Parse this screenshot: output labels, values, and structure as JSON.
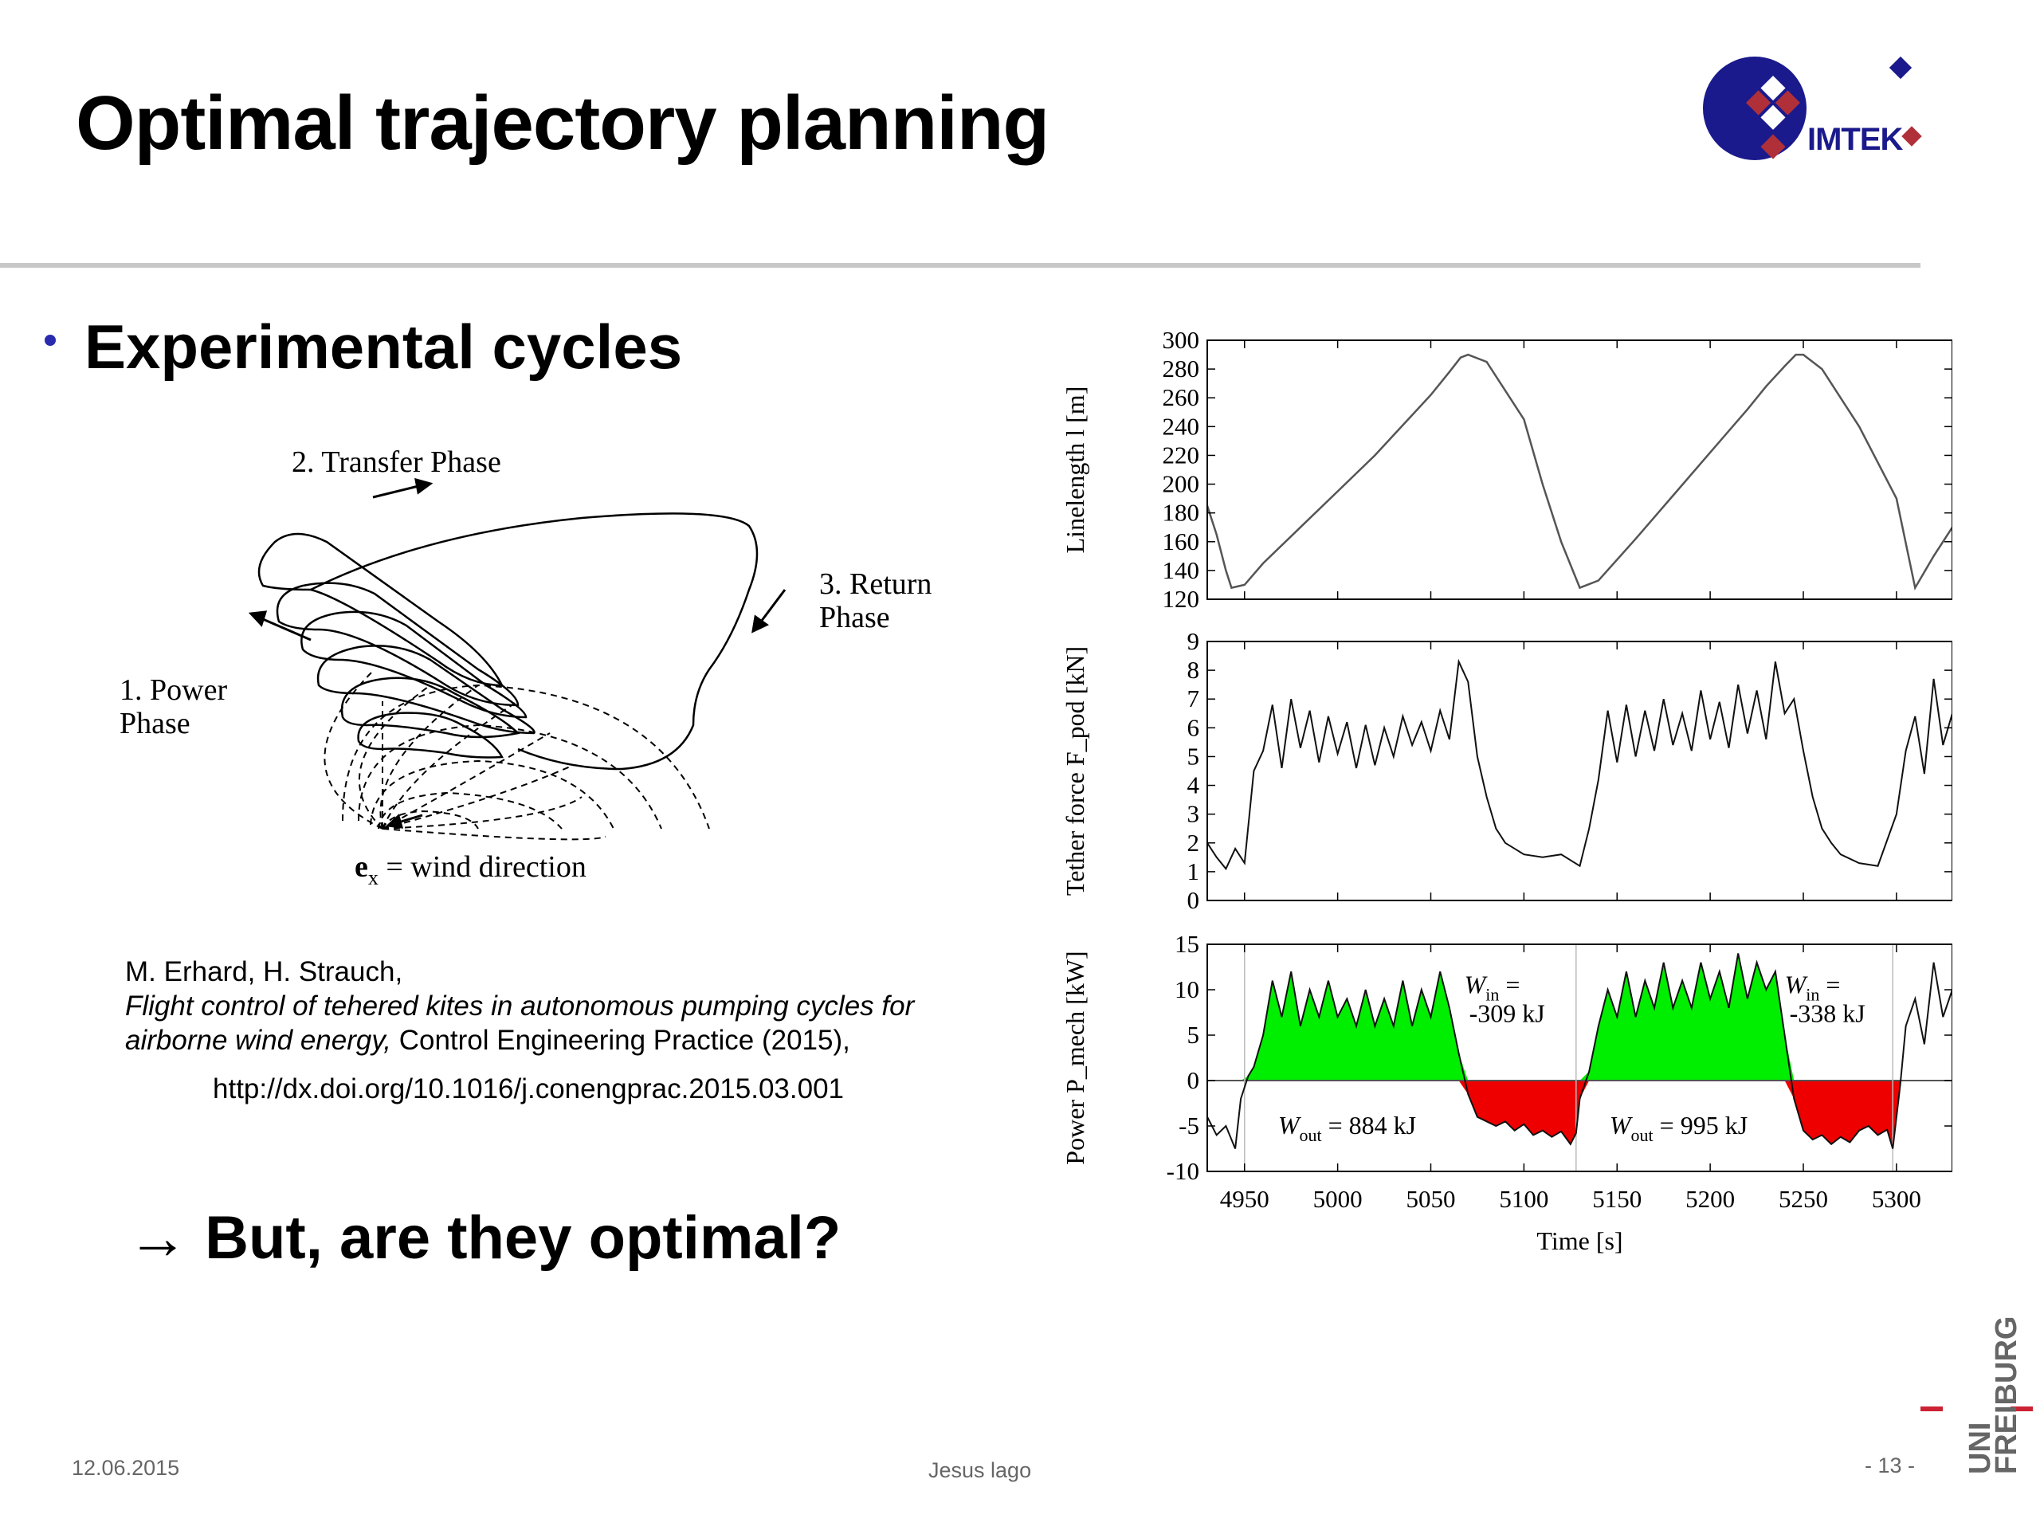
{
  "slide": {
    "title": "Optimal trajectory planning",
    "bullet": "Experimental cycles",
    "logo_text": "IMTEK",
    "question_arrow": "→",
    "question": "But, are they optimal?",
    "uni_logo_line1": "UNI",
    "uni_logo_line2": "FREIBURG"
  },
  "kite_diagram": {
    "label_transfer": "2. Transfer Phase",
    "label_return_1": "3. Return",
    "label_return_2": "Phase",
    "label_power_1": "1. Power",
    "label_power_2": "Phase",
    "label_wind_e": "e",
    "label_wind_sub": "x",
    "label_wind_rest": " = wind direction"
  },
  "citation": {
    "authors": "M. Erhard, H. Strauch,",
    "title_italic": "Flight control of tehered kites in autonomous pumping cycles for",
    "title_italic_2": "airborne wind energy,",
    "journal": " Control Engineering Practice (2015),",
    "url": "http://dx.doi.org/10.1016/j.conengprac.2015.03.001"
  },
  "footer": {
    "date": "12.06.2015",
    "author": "Jesus lago",
    "page": "- 13 -"
  },
  "chart_data": [
    {
      "type": "line",
      "ylabel": "Linelength l [m]",
      "xlim": [
        4930,
        5330
      ],
      "ylim": [
        120,
        300
      ],
      "yticks": [
        120,
        140,
        160,
        180,
        200,
        220,
        240,
        260,
        280,
        300
      ],
      "series": [
        {
          "x": [
            4930,
            4935,
            4940,
            4943,
            4950,
            4960,
            4980,
            5000,
            5020,
            5040,
            5050,
            5060,
            5066,
            5070,
            5080,
            5100,
            5110,
            5120,
            5130,
            5140,
            5160,
            5180,
            5200,
            5220,
            5230,
            5240,
            5246,
            5250,
            5260,
            5280,
            5300,
            5310,
            5320,
            5330
          ],
          "values": [
            185,
            165,
            140,
            128,
            130,
            145,
            170,
            195,
            220,
            248,
            262,
            278,
            288,
            290,
            285,
            245,
            200,
            160,
            128,
            133,
            162,
            192,
            222,
            252,
            268,
            282,
            290,
            290,
            280,
            240,
            190,
            128,
            150,
            170
          ]
        }
      ]
    },
    {
      "type": "line",
      "ylabel": "Tether force F_pod [kN]",
      "xlim": [
        4930,
        5330
      ],
      "ylim": [
        0,
        9
      ],
      "yticks": [
        0,
        1,
        2,
        3,
        4,
        5,
        6,
        7,
        8,
        9
      ],
      "series": [
        {
          "x": [
            4930,
            4935,
            4940,
            4945,
            4950,
            4955,
            4960,
            4965,
            4970,
            4975,
            4980,
            4985,
            4990,
            4995,
            5000,
            5005,
            5010,
            5015,
            5020,
            5025,
            5030,
            5035,
            5040,
            5045,
            5050,
            5055,
            5060,
            5065,
            5070,
            5075,
            5080,
            5085,
            5090,
            5100,
            5110,
            5120,
            5130,
            5135,
            5140,
            5145,
            5150,
            5155,
            5160,
            5165,
            5170,
            5175,
            5180,
            5185,
            5190,
            5195,
            5200,
            5205,
            5210,
            5215,
            5220,
            5225,
            5230,
            5235,
            5240,
            5245,
            5250,
            5255,
            5260,
            5265,
            5270,
            5280,
            5290,
            5300,
            5305,
            5310,
            5315,
            5320,
            5325,
            5330
          ],
          "values": [
            2,
            1.5,
            1.1,
            1.8,
            1.3,
            4.5,
            5.2,
            6.8,
            4.6,
            7,
            5.3,
            6.6,
            4.8,
            6.4,
            5.1,
            6.2,
            4.6,
            6.1,
            4.7,
            6.0,
            5.0,
            6.4,
            5.4,
            6.2,
            5.2,
            6.6,
            5.6,
            8.3,
            7.6,
            5.0,
            3.6,
            2.5,
            2.0,
            1.6,
            1.5,
            1.6,
            1.2,
            2.5,
            4.2,
            6.6,
            4.8,
            6.8,
            5.0,
            6.6,
            5.2,
            7.0,
            5.4,
            6.5,
            5.2,
            7.3,
            5.6,
            6.9,
            5.3,
            7.5,
            5.8,
            7.3,
            5.6,
            8.3,
            6.5,
            7.0,
            5.2,
            3.6,
            2.5,
            2.0,
            1.6,
            1.3,
            1.2,
            3.0,
            5.2,
            6.4,
            4.4,
            7.7,
            5.4,
            6.5
          ]
        }
      ]
    },
    {
      "type": "area",
      "ylabel": "Power P_mech [kW]",
      "xlabel": "Time [s]",
      "xlim": [
        4930,
        5330
      ],
      "ylim": [
        -10,
        15
      ],
      "xticks": [
        4950,
        5000,
        5050,
        5100,
        5150,
        5200,
        5250,
        5300
      ],
      "yticks": [
        -10,
        -5,
        0,
        5,
        10,
        15
      ],
      "series": [
        {
          "x": [
            4930,
            4935,
            4940,
            4945,
            4948,
            4952,
            4955,
            4960,
            4965,
            4970,
            4975,
            4980,
            4985,
            4990,
            4995,
            5000,
            5005,
            5010,
            5015,
            5020,
            5025,
            5030,
            5035,
            5040,
            5045,
            5050,
            5055,
            5060,
            5065,
            5070,
            5075,
            5080,
            5085,
            5090,
            5095,
            5100,
            5105,
            5110,
            5115,
            5120,
            5125,
            5128,
            5130,
            5135,
            5140,
            5145,
            5150,
            5155,
            5160,
            5165,
            5170,
            5175,
            5180,
            5185,
            5190,
            5195,
            5200,
            5205,
            5210,
            5215,
            5220,
            5225,
            5230,
            5235,
            5240,
            5245,
            5250,
            5255,
            5260,
            5265,
            5270,
            5275,
            5280,
            5285,
            5290,
            5295,
            5298,
            5302,
            5305,
            5310,
            5315,
            5320,
            5325,
            5330
          ],
          "values": [
            -4,
            -6,
            -5,
            -7.5,
            -2,
            0.5,
            1.5,
            5,
            11,
            7,
            12,
            6,
            10,
            7,
            11,
            7,
            9,
            6,
            10,
            6,
            9,
            6,
            11,
            6,
            10,
            7,
            12,
            8,
            3,
            -1.5,
            -4,
            -4.5,
            -5,
            -4.5,
            -5.5,
            -4.8,
            -6,
            -5.5,
            -6.2,
            -5.6,
            -7,
            -5.8,
            -2,
            1,
            6,
            10,
            7,
            12,
            7,
            11,
            8,
            13,
            8,
            11,
            8,
            13,
            9,
            12,
            8,
            14,
            9,
            13,
            10,
            12,
            5,
            -2,
            -5.5,
            -6.5,
            -6,
            -7,
            -6.2,
            -6.8,
            -5.5,
            -5,
            -6,
            -5.4,
            -7.5,
            -0.5,
            6,
            9,
            4,
            13,
            7,
            10
          ]
        }
      ],
      "annotations": [
        {
          "w": "W",
          "sub": "in",
          "text_line1": " =",
          "text_line2": "-309 kJ"
        },
        {
          "w": "W",
          "sub": "in",
          "text_line1": " =",
          "text_line2": "-338 kJ"
        },
        {
          "w": "W",
          "sub": "out",
          "text": " = 884 kJ"
        },
        {
          "w": "W",
          "sub": "out",
          "text": " = 995 kJ"
        }
      ],
      "colors": {
        "positive": "#00ee00",
        "negative": "#ee0000"
      }
    }
  ]
}
